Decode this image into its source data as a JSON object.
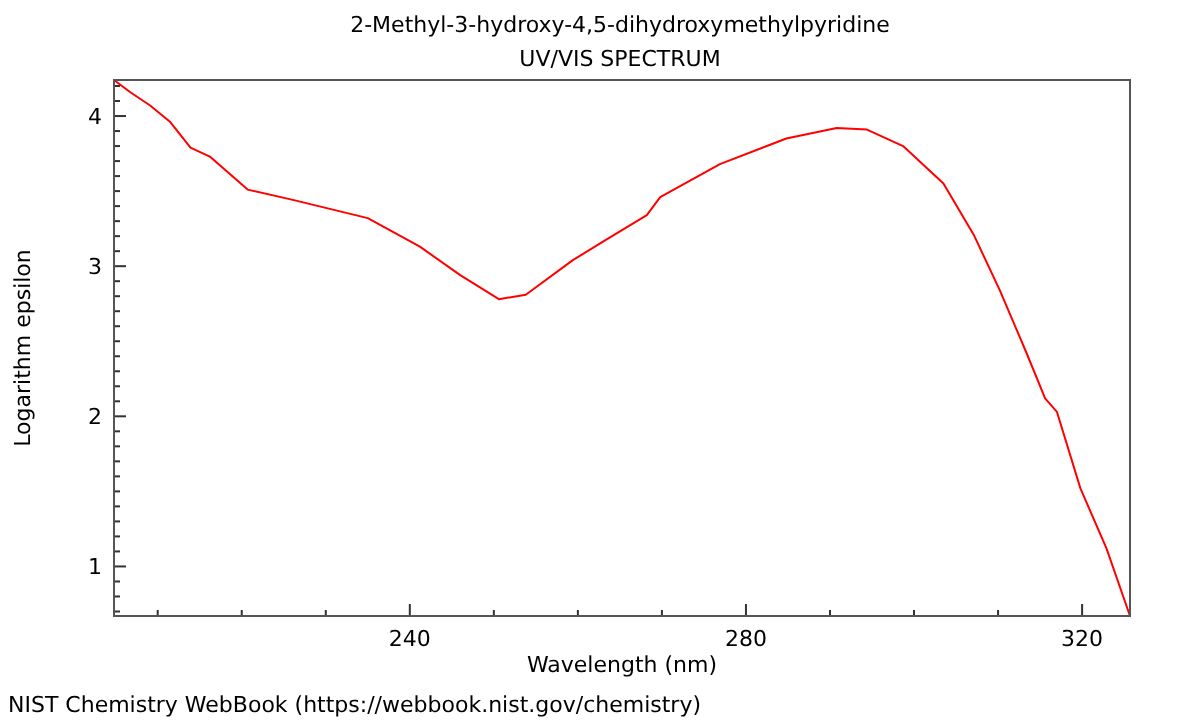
{
  "chart_data": {
    "type": "line",
    "title": "2-Methyl-3-hydroxy-4,5-dihydroxymethylpyridine",
    "subtitle": "UV/VIS SPECTRUM",
    "xlabel": "Wavelength (nm)",
    "ylabel": "Logarithm epsilon",
    "annotations": [
      "NIST Chemistry WebBook (https://webbook.nist.gov/chemistry)"
    ],
    "xlim": [
      204.8,
      325.7
    ],
    "ylim": [
      0.67,
      4.24
    ],
    "xticks": [
      {
        "value": 210,
        "label": null
      },
      {
        "value": 220,
        "label": null
      },
      {
        "value": 230,
        "label": null
      },
      240,
      {
        "value": 250,
        "label": null
      },
      {
        "value": 260,
        "label": null
      },
      {
        "value": 270,
        "label": null
      },
      280,
      {
        "value": 290,
        "label": null
      },
      {
        "value": 300,
        "label": null
      },
      {
        "value": 310,
        "label": null
      },
      320
    ],
    "yticks": [
      {
        "value": 0.7,
        "label": null
      },
      {
        "value": 0.8,
        "label": null
      },
      {
        "value": 0.9,
        "label": null
      },
      1,
      {
        "value": 1.1,
        "label": null
      },
      {
        "value": 1.2,
        "label": null
      },
      {
        "value": 1.3,
        "label": null
      },
      {
        "value": 1.4,
        "label": null
      },
      {
        "value": 1.5,
        "label": null
      },
      {
        "value": 1.6,
        "label": null
      },
      {
        "value": 1.7,
        "label": null
      },
      {
        "value": 1.8,
        "label": null
      },
      {
        "value": 1.9,
        "label": null
      },
      2,
      {
        "value": 2.1,
        "label": null
      },
      {
        "value": 2.2,
        "label": null
      },
      {
        "value": 2.3,
        "label": null
      },
      {
        "value": 2.4,
        "label": null
      },
      {
        "value": 2.5,
        "label": null
      },
      {
        "value": 2.6,
        "label": null
      },
      {
        "value": 2.7,
        "label": null
      },
      {
        "value": 2.8,
        "label": null
      },
      {
        "value": 2.9,
        "label": null
      },
      3,
      {
        "value": 3.1,
        "label": null
      },
      {
        "value": 3.2,
        "label": null
      },
      {
        "value": 3.3,
        "label": null
      },
      {
        "value": 3.4,
        "label": null
      },
      {
        "value": 3.5,
        "label": null
      },
      {
        "value": 3.6,
        "label": null
      },
      {
        "value": 3.7,
        "label": null
      },
      {
        "value": 3.8,
        "label": null
      },
      {
        "value": 3.9,
        "label": null
      },
      4,
      {
        "value": 4.1,
        "label": null
      },
      {
        "value": 4.2,
        "label": null
      }
    ],
    "grid": false,
    "marker": "none",
    "line_style": "solid",
    "series": [
      {
        "color": "#ff0000",
        "x": [
          204.8,
          206.7,
          209.1,
          211.5,
          213.9,
          216.2,
          220.7,
          226.2,
          235,
          241.2,
          246,
          250.6,
          253.8,
          259.4,
          262.6,
          268.2,
          269.8,
          276.9,
          284.8,
          290.8,
          294.4,
          298.7,
          303.5,
          307.1,
          310.2,
          313.4,
          315.6,
          317,
          319.8,
          322.9,
          325.7
        ],
        "values": [
          4.24,
          4.16,
          4.07,
          3.96,
          3.79,
          3.73,
          3.51,
          3.44,
          3.32,
          3.13,
          2.94,
          2.78,
          2.81,
          3.04,
          3.15,
          3.34,
          3.46,
          3.68,
          3.85,
          3.92,
          3.91,
          3.8,
          3.55,
          3.21,
          2.84,
          2.42,
          2.12,
          2.03,
          1.52,
          1.12,
          0.67
        ]
      }
    ]
  }
}
